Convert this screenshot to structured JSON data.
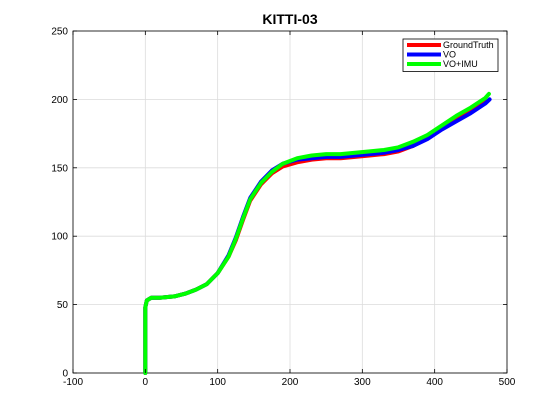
{
  "chart_data": {
    "type": "line",
    "title": "KITTI-03",
    "xlabel": "",
    "ylabel": "",
    "xlim": [
      -100,
      500
    ],
    "ylim": [
      0,
      250
    ],
    "xticks": [
      -100,
      0,
      100,
      200,
      300,
      400,
      500
    ],
    "yticks": [
      0,
      50,
      100,
      150,
      200,
      250
    ],
    "grid": true,
    "legend_position": "top-right",
    "series": [
      {
        "name": "GroundTruth",
        "color": "#ff0000",
        "points": [
          [
            0,
            0
          ],
          [
            0,
            30
          ],
          [
            0,
            48
          ],
          [
            2,
            53
          ],
          [
            8,
            55
          ],
          [
            20,
            55
          ],
          [
            40,
            56
          ],
          [
            55,
            58
          ],
          [
            70,
            61
          ],
          [
            85,
            65
          ],
          [
            100,
            73
          ],
          [
            115,
            85
          ],
          [
            125,
            97
          ],
          [
            135,
            112
          ],
          [
            145,
            126
          ],
          [
            160,
            138
          ],
          [
            175,
            146
          ],
          [
            190,
            151
          ],
          [
            210,
            154
          ],
          [
            230,
            156
          ],
          [
            250,
            157
          ],
          [
            270,
            157
          ],
          [
            290,
            158
          ],
          [
            310,
            159
          ],
          [
            330,
            160
          ],
          [
            350,
            162
          ],
          [
            370,
            166
          ],
          [
            390,
            172
          ],
          [
            410,
            179
          ],
          [
            430,
            186
          ],
          [
            450,
            192
          ],
          [
            470,
            199
          ]
        ]
      },
      {
        "name": "VO",
        "color": "#0000ff",
        "points": [
          [
            0,
            0
          ],
          [
            0,
            30
          ],
          [
            0,
            48
          ],
          [
            2,
            53
          ],
          [
            8,
            55
          ],
          [
            20,
            55
          ],
          [
            40,
            56
          ],
          [
            55,
            58
          ],
          [
            70,
            61
          ],
          [
            85,
            65
          ],
          [
            100,
            73
          ],
          [
            115,
            86
          ],
          [
            125,
            99
          ],
          [
            135,
            114
          ],
          [
            145,
            128
          ],
          [
            160,
            140
          ],
          [
            175,
            148
          ],
          [
            190,
            153
          ],
          [
            210,
            156
          ],
          [
            230,
            157
          ],
          [
            250,
            158
          ],
          [
            270,
            158
          ],
          [
            290,
            159
          ],
          [
            310,
            160
          ],
          [
            330,
            161
          ],
          [
            350,
            163
          ],
          [
            370,
            166
          ],
          [
            390,
            171
          ],
          [
            410,
            178
          ],
          [
            430,
            184
          ],
          [
            450,
            190
          ],
          [
            470,
            197
          ],
          [
            476,
            200
          ]
        ]
      },
      {
        "name": "VO+IMU",
        "color": "#00ff00",
        "points": [
          [
            0,
            0
          ],
          [
            0,
            30
          ],
          [
            0,
            48
          ],
          [
            2,
            53
          ],
          [
            8,
            55
          ],
          [
            20,
            55
          ],
          [
            40,
            56
          ],
          [
            55,
            58
          ],
          [
            70,
            61
          ],
          [
            85,
            65
          ],
          [
            100,
            73
          ],
          [
            115,
            85
          ],
          [
            125,
            98
          ],
          [
            135,
            113
          ],
          [
            145,
            127
          ],
          [
            160,
            139
          ],
          [
            175,
            147
          ],
          [
            190,
            153
          ],
          [
            210,
            157
          ],
          [
            230,
            159
          ],
          [
            250,
            160
          ],
          [
            270,
            160
          ],
          [
            290,
            161
          ],
          [
            310,
            162
          ],
          [
            330,
            163
          ],
          [
            350,
            165
          ],
          [
            370,
            169
          ],
          [
            390,
            174
          ],
          [
            410,
            181
          ],
          [
            430,
            188
          ],
          [
            450,
            194
          ],
          [
            470,
            201
          ],
          [
            475,
            204
          ]
        ]
      }
    ]
  }
}
